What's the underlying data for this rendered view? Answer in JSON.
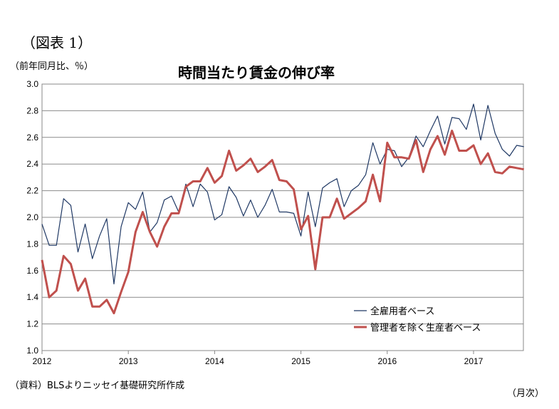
{
  "figure_label": "（図表 1）",
  "unit_label": "（前年同月比、％）",
  "source_label": "（資料）BLSよりニッセイ基礎研究所作成",
  "x_unit_label": "（月次）",
  "chart_data": {
    "type": "line",
    "title": "時間当たり賃金の伸び率",
    "xlabel": "",
    "ylabel": "",
    "ylim": [
      1.0,
      3.0
    ],
    "yticks": [
      "3.0",
      "2.8",
      "2.6",
      "2.4",
      "2.2",
      "2.0",
      "1.8",
      "1.6",
      "1.4",
      "1.2",
      "1.0"
    ],
    "xticks": [
      "2012",
      "2013",
      "2014",
      "2015",
      "2016",
      "2017"
    ],
    "grid": true,
    "legend_position": "bottom-right",
    "x_start": "2012-01",
    "series": [
      {
        "name": "全雇用者ベース",
        "color": "#1f3864",
        "values": [
          1.95,
          1.79,
          1.79,
          2.14,
          2.09,
          1.74,
          1.95,
          1.69,
          1.86,
          1.99,
          1.5,
          1.93,
          2.11,
          2.06,
          2.19,
          1.89,
          1.96,
          2.13,
          2.16,
          2.04,
          2.25,
          2.08,
          2.25,
          2.19,
          1.98,
          2.02,
          2.23,
          2.15,
          2.01,
          2.13,
          2.0,
          2.09,
          2.21,
          2.04,
          2.04,
          2.03,
          1.86,
          2.19,
          1.93,
          2.22,
          2.26,
          2.29,
          2.08,
          2.2,
          2.24,
          2.32,
          2.56,
          2.4,
          2.51,
          2.5,
          2.38,
          2.45,
          2.61,
          2.53,
          2.65,
          2.76,
          2.55,
          2.75,
          2.74,
          2.66,
          2.85,
          2.58,
          2.84,
          2.63,
          2.51,
          2.46,
          2.54,
          2.53
        ]
      },
      {
        "name": "管理者を除く生産者ベース",
        "color": "#c0504d",
        "values": [
          1.68,
          1.4,
          1.45,
          1.71,
          1.65,
          1.45,
          1.54,
          1.33,
          1.33,
          1.38,
          1.28,
          1.44,
          1.59,
          1.89,
          2.04,
          1.89,
          1.78,
          1.93,
          2.03,
          2.03,
          2.23,
          2.27,
          2.27,
          2.37,
          2.26,
          2.31,
          2.5,
          2.35,
          2.39,
          2.44,
          2.34,
          2.38,
          2.43,
          2.28,
          2.27,
          2.21,
          1.91,
          2.01,
          1.61,
          2.0,
          2.0,
          2.14,
          1.99,
          2.03,
          2.07,
          2.12,
          2.32,
          2.12,
          2.56,
          2.45,
          2.45,
          2.44,
          2.58,
          2.34,
          2.51,
          2.61,
          2.47,
          2.65,
          2.5,
          2.5,
          2.54,
          2.4,
          2.48,
          2.34,
          2.33,
          2.38,
          2.37,
          2.36
        ]
      }
    ]
  }
}
